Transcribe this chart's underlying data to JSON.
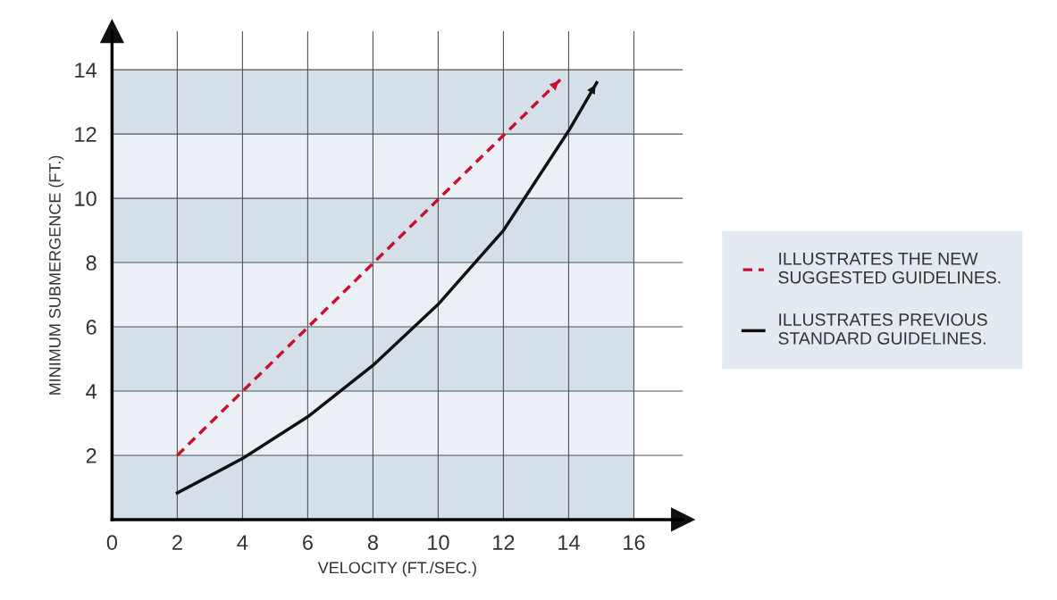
{
  "chart_data": {
    "type": "line",
    "xlabel": "VELOCITY (FT./SEC.)",
    "ylabel": "MINIMUM SUBMERGENCE (FT.)",
    "xlim": [
      0,
      17.5
    ],
    "ylim": [
      0,
      15.2
    ],
    "xticks": [
      0,
      2,
      4,
      6,
      8,
      10,
      12,
      14,
      16
    ],
    "yticks": [
      2,
      4,
      6,
      8,
      10,
      12,
      14
    ],
    "grid": true,
    "legend": "right",
    "tick_labels": true,
    "series": [
      {
        "name": "ILLUSTRATES THE NEW\nSUGGESTED GUIDELINES.",
        "color": "#c8102e",
        "line_style": "dashed",
        "x": [
          2,
          13.75
        ],
        "values": [
          2,
          13.7
        ]
      },
      {
        "name": "ILLUSTRATES PREVIOUS\nSTANDARD GUIDELINES.",
        "color": "#111111",
        "line_style": "solid",
        "x": [
          2,
          4,
          6,
          8,
          10,
          12,
          14,
          14.86
        ],
        "values": [
          0.83,
          1.9,
          3.2,
          4.8,
          6.7,
          9.0,
          12.1,
          13.6
        ]
      }
    ],
    "bands": [
      {
        "axis": "y",
        "from": 0,
        "to": 2,
        "color": "#d5dfea"
      },
      {
        "axis": "y",
        "from": 2,
        "to": 4,
        "color": "#eaf0f6"
      },
      {
        "axis": "y",
        "from": 4,
        "to": 6,
        "color": "#d5dfea"
      },
      {
        "axis": "y",
        "from": 6,
        "to": 8,
        "color": "#eaf0f6"
      },
      {
        "axis": "y",
        "from": 8,
        "to": 10,
        "color": "#d5dfea"
      },
      {
        "axis": "y",
        "from": 10,
        "to": 12,
        "color": "#eaf0f6"
      },
      {
        "axis": "y",
        "from": 12,
        "to": 14,
        "color": "#d5dfea"
      }
    ]
  }
}
